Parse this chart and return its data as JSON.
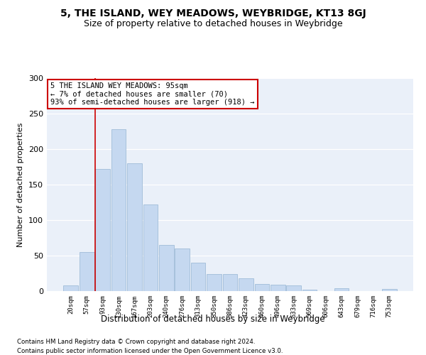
{
  "title": "5, THE ISLAND, WEY MEADOWS, WEYBRIDGE, KT13 8GJ",
  "subtitle": "Size of property relative to detached houses in Weybridge",
  "xlabel": "Distribution of detached houses by size in Weybridge",
  "ylabel": "Number of detached properties",
  "categories": [
    "20sqm",
    "57sqm",
    "93sqm",
    "130sqm",
    "167sqm",
    "203sqm",
    "240sqm",
    "276sqm",
    "313sqm",
    "350sqm",
    "386sqm",
    "423sqm",
    "460sqm",
    "496sqm",
    "533sqm",
    "569sqm",
    "606sqm",
    "643sqm",
    "679sqm",
    "716sqm",
    "753sqm"
  ],
  "values": [
    8,
    55,
    172,
    228,
    180,
    122,
    65,
    60,
    40,
    24,
    24,
    18,
    10,
    9,
    8,
    2,
    0,
    4,
    0,
    0,
    3
  ],
  "bar_color": "#c5d8f0",
  "bar_edge_color": "#a0bcd8",
  "vline_index": 2,
  "annotation_line1": "5 THE ISLAND WEY MEADOWS: 95sqm",
  "annotation_line2": "← 7% of detached houses are smaller (70)",
  "annotation_line3": "93% of semi-detached houses are larger (918) →",
  "annotation_box_color": "#ffffff",
  "annotation_box_edge": "#cc0000",
  "vline_color": "#cc0000",
  "footer1": "Contains HM Land Registry data © Crown copyright and database right 2024.",
  "footer2": "Contains public sector information licensed under the Open Government Licence v3.0.",
  "ylim": [
    0,
    300
  ],
  "yticks": [
    0,
    50,
    100,
    150,
    200,
    250,
    300
  ],
  "bg_color": "#eaf0f9",
  "title_fontsize": 10,
  "subtitle_fontsize": 9
}
